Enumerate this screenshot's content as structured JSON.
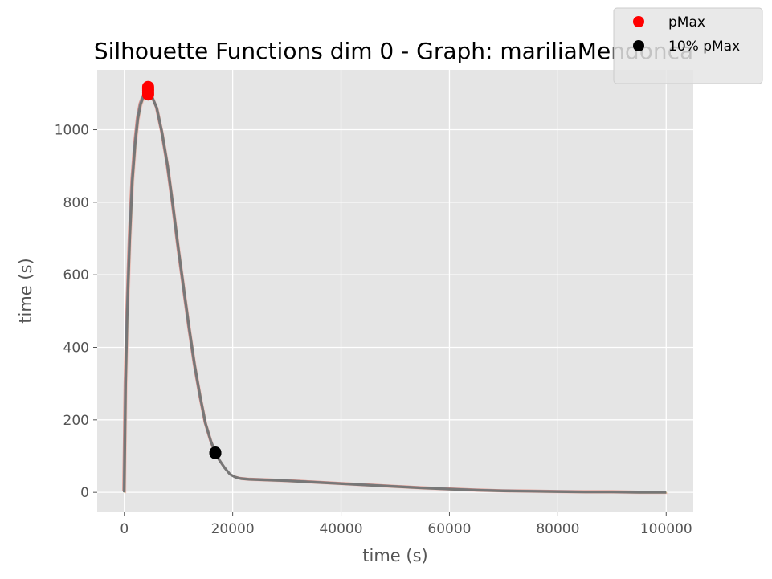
{
  "chart_data": {
    "type": "line",
    "title": "Silhouette Functions dim 0 - Graph:  mariliaMendonca",
    "xlabel": "time (s)",
    "ylabel": "time (s)",
    "xlim": [
      -5000,
      105000
    ],
    "ylim": [
      -55,
      1165
    ],
    "x_ticks": [
      0,
      20000,
      40000,
      60000,
      80000,
      100000
    ],
    "y_ticks": [
      0,
      200,
      400,
      600,
      800,
      1000
    ],
    "grid": true,
    "legend_position": "top-right",
    "colors": {
      "plot_background": "#e5e5e5",
      "grid": "#ffffff",
      "series_main": "#777777",
      "series_variants": [
        "#e24a33",
        "#348abd",
        "#988ed5",
        "#fbc15e",
        "#8eba42",
        "#ffb5b8"
      ],
      "pmax_marker": "#ff0000",
      "ten_pct_marker": "#000000"
    },
    "series": [
      {
        "x": [
          0,
          250,
          500,
          1000,
          1500,
          2000,
          2500,
          3000,
          3500,
          4000,
          4400,
          5000,
          6000,
          7000,
          8000,
          9000,
          10000,
          11000,
          12000,
          13000,
          14000,
          15000,
          16000,
          16800,
          17500,
          18500,
          19500,
          20500,
          21500,
          23000,
          25000,
          30000,
          35000,
          40000,
          45000,
          50000,
          55000,
          60000,
          65000,
          70000,
          75000,
          80000,
          85000,
          90000,
          95000,
          100000
        ],
        "y": [
          0,
          300,
          470,
          700,
          860,
          960,
          1030,
          1070,
          1090,
          1100,
          1102,
          1095,
          1060,
          990,
          900,
          790,
          670,
          560,
          450,
          350,
          265,
          190,
          140,
          110,
          90,
          68,
          50,
          42,
          38,
          36,
          35,
          32,
          28,
          24,
          20,
          16,
          12,
          9,
          6,
          4,
          3,
          2,
          1,
          1,
          0,
          0
        ]
      }
    ],
    "markers": {
      "pMax": {
        "label": "pMax",
        "points": [
          [
            4400,
            1118
          ],
          [
            4400,
            1112
          ],
          [
            4400,
            1108
          ],
          [
            4400,
            1102
          ],
          [
            4400,
            1097
          ]
        ]
      },
      "pMax10": {
        "label": "10% pMax",
        "points": [
          [
            16800,
            110
          ],
          [
            16800,
            108
          ]
        ]
      }
    }
  }
}
